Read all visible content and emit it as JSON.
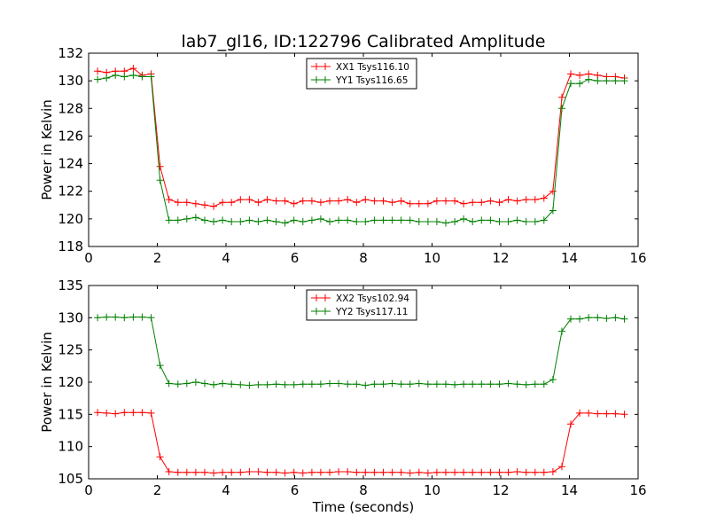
{
  "chart_data": [
    {
      "type": "line",
      "title": "lab7_gl16, ID:122796 Calibrated Amplitude",
      "xlabel": "",
      "ylabel": "Power in Kelvin",
      "xlim": [
        0,
        16
      ],
      "ylim": [
        118,
        132
      ],
      "xticks": [
        0,
        2,
        4,
        6,
        8,
        10,
        12,
        14,
        16
      ],
      "yticks": [
        118,
        120,
        122,
        124,
        126,
        128,
        130,
        132
      ],
      "grid": false,
      "legend": "top-center",
      "x": [
        0.26,
        0.52,
        0.78,
        1.04,
        1.3,
        1.56,
        1.82,
        2.08,
        2.34,
        2.6,
        2.86,
        3.12,
        3.38,
        3.64,
        3.9,
        4.16,
        4.42,
        4.68,
        4.94,
        5.2,
        5.46,
        5.72,
        5.98,
        6.24,
        6.5,
        6.76,
        7.02,
        7.28,
        7.54,
        7.8,
        8.06,
        8.32,
        8.58,
        8.84,
        9.1,
        9.36,
        9.62,
        9.88,
        10.14,
        10.4,
        10.66,
        10.92,
        11.18,
        11.44,
        11.7,
        11.96,
        12.22,
        12.48,
        12.74,
        13.0,
        13.26,
        13.52,
        13.78,
        14.04,
        14.3,
        14.56,
        14.82,
        15.08,
        15.34,
        15.6
      ],
      "series": [
        {
          "name": "XX1 Tsys116.10",
          "color": "#ff0000",
          "values": [
            130.7,
            130.6,
            130.7,
            130.7,
            130.9,
            130.4,
            130.5,
            123.8,
            121.4,
            121.2,
            121.2,
            121.1,
            121.0,
            120.9,
            121.2,
            121.2,
            121.4,
            121.4,
            121.2,
            121.4,
            121.3,
            121.3,
            121.1,
            121.3,
            121.3,
            121.2,
            121.3,
            121.3,
            121.4,
            121.2,
            121.4,
            121.3,
            121.3,
            121.2,
            121.3,
            121.1,
            121.1,
            121.1,
            121.3,
            121.3,
            121.3,
            121.1,
            121.2,
            121.2,
            121.3,
            121.2,
            121.4,
            121.3,
            121.4,
            121.4,
            121.5,
            122.0,
            128.8,
            130.5,
            130.4,
            130.5,
            130.4,
            130.3,
            130.3,
            130.2
          ]
        },
        {
          "name": "YY1 Tsys116.65",
          "color": "#008000",
          "values": [
            130.1,
            130.2,
            130.4,
            130.3,
            130.4,
            130.3,
            130.3,
            122.8,
            119.9,
            119.9,
            120.0,
            120.1,
            119.9,
            119.8,
            119.9,
            119.8,
            119.8,
            119.9,
            119.8,
            119.9,
            119.8,
            119.7,
            119.9,
            119.8,
            119.9,
            120.0,
            119.8,
            119.9,
            119.9,
            119.8,
            119.8,
            119.9,
            119.9,
            119.9,
            119.9,
            119.9,
            119.8,
            119.8,
            119.8,
            119.7,
            119.8,
            120.0,
            119.8,
            119.9,
            119.9,
            119.8,
            119.8,
            119.9,
            119.8,
            119.8,
            119.9,
            120.6,
            128.0,
            129.8,
            129.8,
            130.1,
            130.0,
            130.0,
            130.0,
            130.0
          ]
        }
      ]
    },
    {
      "type": "line",
      "title": "",
      "xlabel": "Time (seconds)",
      "ylabel": "Power in Kelvin",
      "xlim": [
        0,
        16
      ],
      "ylim": [
        105,
        135
      ],
      "xticks": [
        0,
        2,
        4,
        6,
        8,
        10,
        12,
        14,
        16
      ],
      "yticks": [
        105,
        110,
        115,
        120,
        125,
        130,
        135
      ],
      "grid": false,
      "legend": "top-center",
      "x": [
        0.26,
        0.52,
        0.78,
        1.04,
        1.3,
        1.56,
        1.82,
        2.08,
        2.34,
        2.6,
        2.86,
        3.12,
        3.38,
        3.64,
        3.9,
        4.16,
        4.42,
        4.68,
        4.94,
        5.2,
        5.46,
        5.72,
        5.98,
        6.24,
        6.5,
        6.76,
        7.02,
        7.28,
        7.54,
        7.8,
        8.06,
        8.32,
        8.58,
        8.84,
        9.1,
        9.36,
        9.62,
        9.88,
        10.14,
        10.4,
        10.66,
        10.92,
        11.18,
        11.44,
        11.7,
        11.96,
        12.22,
        12.48,
        12.74,
        13.0,
        13.26,
        13.52,
        13.78,
        14.04,
        14.3,
        14.56,
        14.82,
        15.08,
        15.34,
        15.6
      ],
      "series": [
        {
          "name": "XX2 Tsys102.94",
          "color": "#ff0000",
          "values": [
            115.3,
            115.2,
            115.1,
            115.3,
            115.3,
            115.3,
            115.2,
            108.4,
            106.1,
            106.0,
            106.0,
            106.0,
            106.0,
            105.9,
            106.0,
            106.0,
            106.0,
            106.1,
            106.1,
            106.0,
            106.0,
            105.9,
            106.0,
            105.9,
            106.0,
            106.0,
            106.0,
            106.1,
            106.1,
            106.0,
            106.0,
            106.0,
            106.0,
            106.0,
            106.0,
            105.9,
            106.0,
            105.9,
            106.0,
            106.0,
            106.0,
            106.0,
            106.0,
            106.0,
            106.0,
            106.0,
            106.0,
            106.1,
            106.0,
            106.0,
            106.0,
            106.1,
            106.9,
            113.5,
            115.2,
            115.2,
            115.1,
            115.1,
            115.1,
            115.0
          ]
        },
        {
          "name": "YY2 Tsys117.11",
          "color": "#008000",
          "values": [
            130.0,
            130.1,
            130.1,
            130.0,
            130.1,
            130.1,
            130.0,
            122.6,
            119.8,
            119.7,
            119.8,
            120.0,
            119.8,
            119.6,
            119.8,
            119.7,
            119.6,
            119.5,
            119.6,
            119.6,
            119.7,
            119.6,
            119.6,
            119.7,
            119.7,
            119.7,
            119.8,
            119.8,
            119.7,
            119.7,
            119.5,
            119.7,
            119.7,
            119.8,
            119.7,
            119.7,
            119.8,
            119.7,
            119.7,
            119.7,
            119.6,
            119.7,
            119.7,
            119.7,
            119.7,
            119.7,
            119.8,
            119.7,
            119.6,
            119.7,
            119.7,
            120.4,
            127.9,
            129.8,
            129.8,
            130.0,
            130.0,
            129.9,
            130.0,
            129.8
          ]
        }
      ]
    }
  ]
}
